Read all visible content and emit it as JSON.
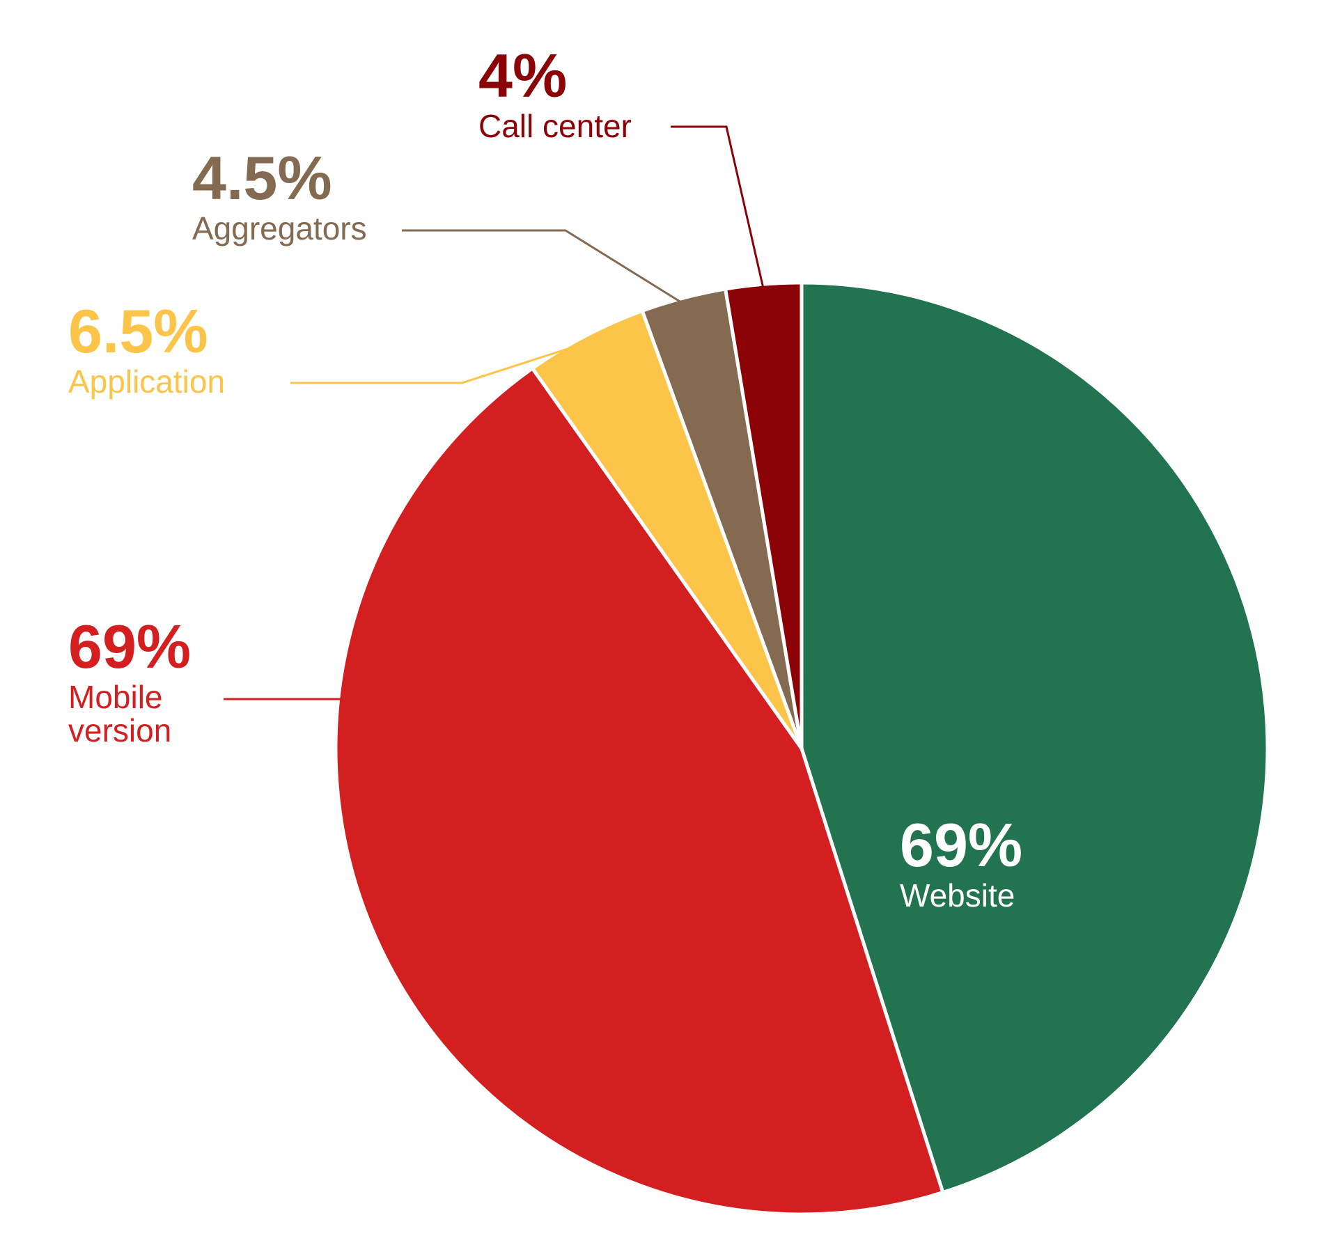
{
  "chart_data": {
    "type": "pie",
    "categories": [
      "Website",
      "Mobile version",
      "Application",
      "Aggregators",
      "Call center"
    ],
    "values": [
      69,
      69,
      6.5,
      4.5,
      4
    ],
    "value_labels": [
      "69%",
      "69%",
      "6.5%",
      "4.5%",
      "4%"
    ],
    "colors": [
      "#21744f",
      "#d31f1f",
      "#fcc54a",
      "#836a50",
      "#8b0306"
    ]
  }
}
